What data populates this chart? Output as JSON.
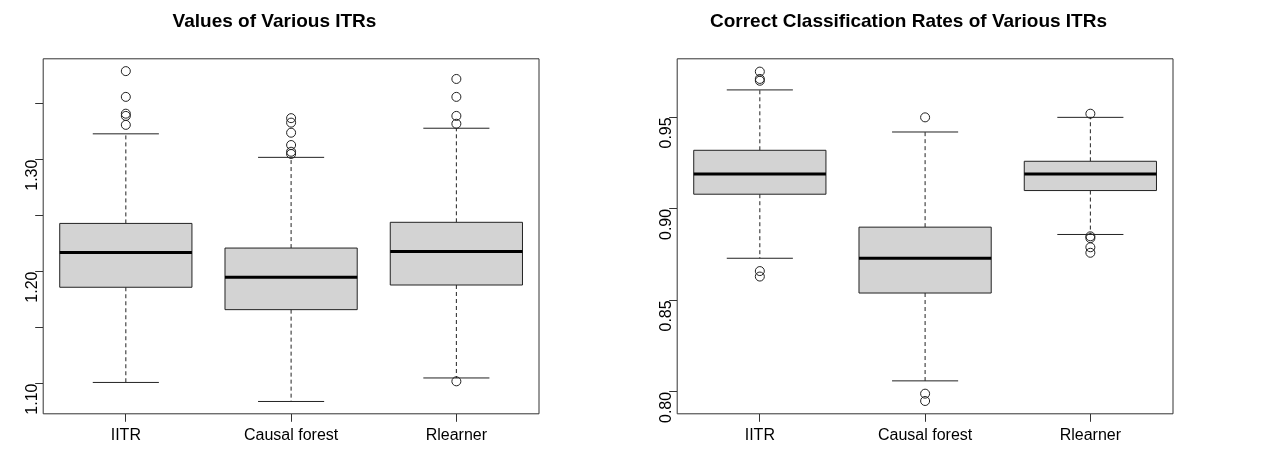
{
  "chart_data": [
    {
      "type": "box",
      "title": "Values of Various ITRs",
      "categories": [
        "IITR",
        "Causal forest",
        "Rlearner"
      ],
      "boxes": [
        {
          "low": 1.101,
          "q1": 1.186,
          "median": 1.217,
          "q3": 1.243,
          "high": 1.323,
          "outliers": [
            1.379,
            1.356,
            1.341,
            1.339,
            1.331
          ]
        },
        {
          "low": 1.084,
          "q1": 1.166,
          "median": 1.195,
          "q3": 1.221,
          "high": 1.302,
          "outliers": [
            1.337,
            1.333,
            1.324,
            1.313,
            1.307,
            1.305
          ]
        },
        {
          "low": 1.105,
          "q1": 1.188,
          "median": 1.218,
          "q3": 1.244,
          "high": 1.328,
          "outliers": [
            1.372,
            1.356,
            1.339,
            1.332,
            1.102
          ]
        }
      ],
      "color": "#d3d3d3",
      "ylim": [
        1.073,
        1.39
      ],
      "yticks": [
        {
          "value": 1.1,
          "label": "1.10"
        },
        {
          "value": 1.15,
          "label": null
        },
        {
          "value": 1.2,
          "label": "1.20"
        },
        {
          "value": 1.25,
          "label": null
        },
        {
          "value": 1.3,
          "label": "1.30"
        },
        {
          "value": 1.35,
          "label": null
        }
      ],
      "grid": false,
      "legend": false
    },
    {
      "type": "box",
      "title": "Correct Classification Rates of Various ITRs",
      "categories": [
        "IITR",
        "Causal forest",
        "Rlearner"
      ],
      "boxes": [
        {
          "low": 0.873,
          "q1": 0.908,
          "median": 0.919,
          "q3": 0.932,
          "high": 0.965,
          "outliers": [
            0.975,
            0.971,
            0.97,
            0.866,
            0.863
          ]
        },
        {
          "low": 0.806,
          "q1": 0.854,
          "median": 0.873,
          "q3": 0.89,
          "high": 0.942,
          "outliers": [
            0.95,
            0.799,
            0.795
          ]
        },
        {
          "low": 0.886,
          "q1": 0.91,
          "median": 0.919,
          "q3": 0.926,
          "high": 0.95,
          "outliers": [
            0.952,
            0.885,
            0.884,
            0.879,
            0.876
          ]
        }
      ],
      "color": "#d3d3d3",
      "ylim": [
        0.788,
        0.982
      ],
      "yticks": [
        {
          "value": 0.8,
          "label": "0.80"
        },
        {
          "value": 0.85,
          "label": "0.85"
        },
        {
          "value": 0.9,
          "label": "0.90"
        },
        {
          "value": 0.95,
          "label": "0.95"
        }
      ],
      "grid": false,
      "legend": false
    }
  ]
}
